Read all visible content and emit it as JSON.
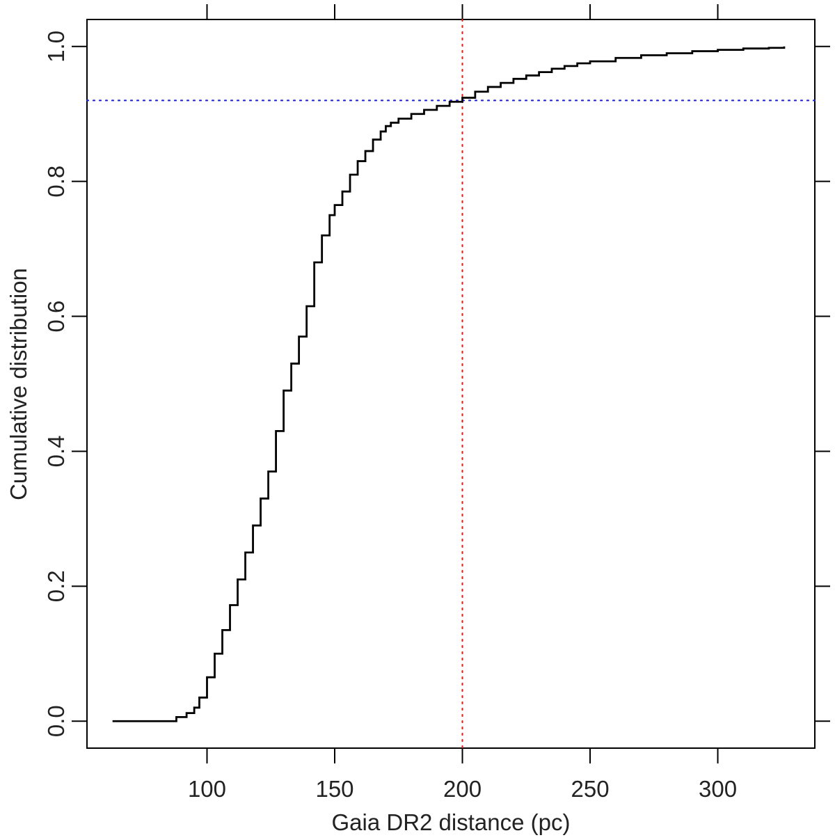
{
  "chart_data": {
    "type": "line",
    "title": "",
    "xlabel": "Gaia DR2 distance (pc)",
    "ylabel": "Cumulative distribution",
    "xlim": [
      53,
      338
    ],
    "ylim": [
      -0.04,
      1.04
    ],
    "xticks": [
      100,
      150,
      200,
      250,
      300
    ],
    "xtick_labels": [
      "100",
      "150",
      "200",
      "250",
      "300"
    ],
    "yticks": [
      0.0,
      0.2,
      0.4,
      0.6,
      0.8,
      1.0
    ],
    "ytick_labels": [
      "0.0",
      "0.2",
      "0.4",
      "0.6",
      "0.8",
      "1.0"
    ],
    "grid": false,
    "legend": "none",
    "series": [
      {
        "style": "step",
        "color": "#000000",
        "x": [
          63,
          86,
          88,
          92,
          95,
          97,
          100,
          103,
          106,
          109,
          112,
          115,
          118,
          121,
          124,
          127,
          130,
          133,
          136,
          139,
          142,
          145,
          148,
          150,
          153,
          156,
          159,
          162,
          165,
          168,
          170,
          172,
          175,
          180,
          185,
          190,
          195,
          200,
          205,
          210,
          215,
          220,
          225,
          230,
          235,
          240,
          245,
          250,
          260,
          270,
          280,
          290,
          300,
          310,
          320,
          326
        ],
        "y": [
          0.0,
          0.0,
          0.006,
          0.012,
          0.02,
          0.035,
          0.065,
          0.1,
          0.135,
          0.172,
          0.21,
          0.25,
          0.29,
          0.33,
          0.37,
          0.43,
          0.49,
          0.53,
          0.57,
          0.615,
          0.68,
          0.72,
          0.75,
          0.765,
          0.785,
          0.81,
          0.83,
          0.845,
          0.862,
          0.874,
          0.882,
          0.887,
          0.893,
          0.9,
          0.906,
          0.912,
          0.918,
          0.924,
          0.933,
          0.94,
          0.946,
          0.952,
          0.957,
          0.962,
          0.967,
          0.971,
          0.975,
          0.978,
          0.983,
          0.987,
          0.99,
          0.993,
          0.995,
          0.997,
          0.998,
          1.0
        ]
      }
    ],
    "reference_lines": [
      {
        "orientation": "vertical",
        "value": 200,
        "color": "#e8241a",
        "style": "dotted"
      },
      {
        "orientation": "horizontal",
        "value": 0.92,
        "color": "#1f24d6",
        "style": "dotted"
      }
    ]
  }
}
